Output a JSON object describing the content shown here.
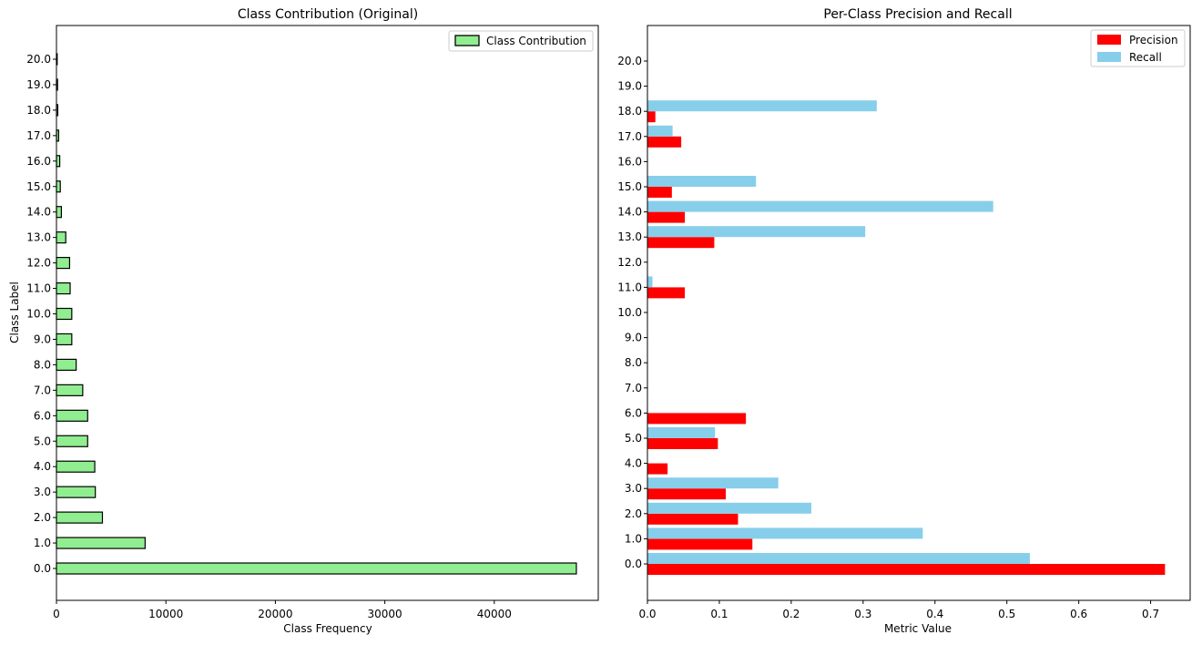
{
  "chart_data": [
    {
      "type": "bar",
      "orientation": "horizontal",
      "title": "Class Contribution (Original)",
      "xlabel": "Class Frequency",
      "ylabel": "Class Label",
      "categories": [
        "0.0",
        "1.0",
        "2.0",
        "3.0",
        "4.0",
        "5.0",
        "6.0",
        "7.0",
        "8.0",
        "9.0",
        "10.0",
        "11.0",
        "12.0",
        "13.0",
        "14.0",
        "15.0",
        "16.0",
        "17.0",
        "18.0",
        "19.0",
        "20.0"
      ],
      "series": [
        {
          "name": "Class Contribution",
          "color": "#90ee90",
          "edge": "#000000",
          "values": [
            47500,
            8100,
            4200,
            3550,
            3500,
            2850,
            2850,
            2400,
            1800,
            1400,
            1400,
            1250,
            1200,
            850,
            450,
            350,
            300,
            200,
            120,
            100,
            50
          ]
        }
      ],
      "xlim": [
        0,
        49500
      ],
      "xticks": [
        0,
        10000,
        20000,
        30000,
        40000
      ],
      "xtick_labels": [
        "0",
        "10000",
        "20000",
        "30000",
        "40000"
      ],
      "legend_position": "top-right"
    },
    {
      "type": "bar",
      "orientation": "horizontal",
      "title": "Per-Class Precision and Recall",
      "xlabel": "Metric Value",
      "ylabel": "",
      "categories": [
        "0.0",
        "1.0",
        "2.0",
        "3.0",
        "4.0",
        "5.0",
        "6.0",
        "7.0",
        "8.0",
        "9.0",
        "10.0",
        "11.0",
        "12.0",
        "13.0",
        "14.0",
        "15.0",
        "16.0",
        "17.0",
        "18.0",
        "19.0",
        "20.0"
      ],
      "series": [
        {
          "name": "Precision",
          "color": "#ff0000",
          "values": [
            0.72,
            0.146,
            0.126,
            0.109,
            0.028,
            0.098,
            0.137,
            0,
            0,
            0,
            0,
            0.052,
            0,
            0.093,
            0.052,
            0.034,
            0,
            0.047,
            0.011,
            0,
            0
          ]
        },
        {
          "name": "Recall",
          "color": "#87ceeb",
          "values": [
            0.532,
            0.383,
            0.228,
            0.182,
            0,
            0.094,
            0,
            0,
            0,
            0,
            0,
            0.007,
            0,
            0.303,
            0.481,
            0.151,
            0,
            0.035,
            0.319,
            0,
            0
          ]
        }
      ],
      "xlim": [
        0,
        0.755
      ],
      "xticks": [
        0,
        0.1,
        0.2,
        0.3,
        0.4,
        0.5,
        0.6,
        0.7
      ],
      "xtick_labels": [
        "0.0",
        "0.1",
        "0.2",
        "0.3",
        "0.4",
        "0.5",
        "0.6",
        "0.7"
      ],
      "legend_position": "top-right"
    }
  ]
}
